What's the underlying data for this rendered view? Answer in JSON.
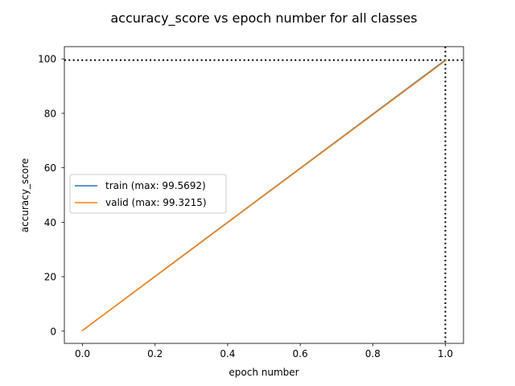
{
  "chart_data": {
    "type": "line",
    "title": "accuracy_score vs epoch number for all classes",
    "xlabel": "epoch number",
    "ylabel": "accuracy_score",
    "xlim": [
      -0.05,
      1.05
    ],
    "ylim": [
      -4.5,
      104.5
    ],
    "xticks": [
      0.0,
      0.2,
      0.4,
      0.6,
      0.8,
      1.0
    ],
    "xtick_labels": [
      "0.0",
      "0.2",
      "0.4",
      "0.6",
      "0.8",
      "1.0"
    ],
    "yticks": [
      0,
      20,
      40,
      60,
      80,
      100
    ],
    "ytick_labels": [
      "0",
      "20",
      "40",
      "60",
      "80",
      "100"
    ],
    "grid": false,
    "legend_position": "center-left",
    "series": [
      {
        "name": "train (max: 99.5692)",
        "color": "#1f77b4",
        "x": [
          0,
          1
        ],
        "values": [
          0.25,
          99.5692
        ]
      },
      {
        "name": "valid (max: 99.3215)",
        "color": "#ff7f0e",
        "x": [
          0,
          1
        ],
        "values": [
          0.25,
          99.3215
        ]
      }
    ],
    "reference_lines": [
      {
        "orientation": "horizontal",
        "value": 99.5692,
        "style": "dotted",
        "color": "#000000"
      },
      {
        "orientation": "vertical",
        "value": 1.0,
        "style": "dotted",
        "color": "#000000"
      }
    ]
  }
}
